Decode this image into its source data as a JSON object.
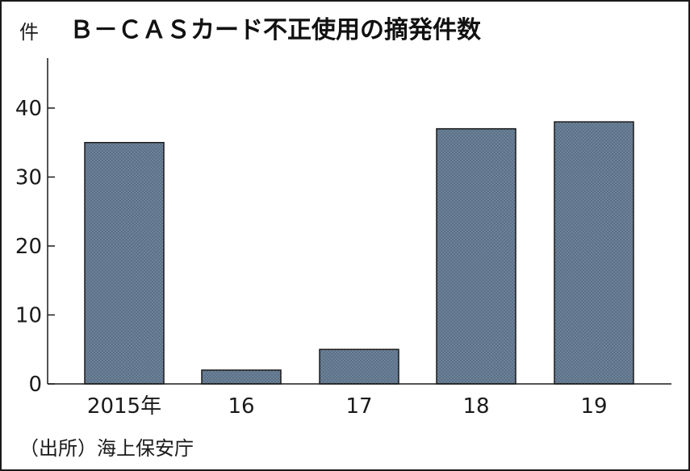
{
  "chart_data": {
    "type": "bar",
    "title": "Ｂ－ＣＡＳカード不正使用の摘発件数",
    "ylabel": "件",
    "xlabel": "",
    "categories": [
      "2015年",
      "16",
      "17",
      "18",
      "19"
    ],
    "values": [
      35,
      2,
      5,
      37,
      38
    ],
    "ylim": [
      0,
      47
    ],
    "yticks": [
      0,
      10,
      20,
      30,
      40
    ],
    "grid": false,
    "legend": "none"
  },
  "source": "（出所）海上保安庁",
  "colors": {
    "bar_fill": "#6c8299",
    "bar_pattern_dot": "#4a5d70",
    "axis": "#1a1a1a",
    "text": "#1a1a1a"
  }
}
